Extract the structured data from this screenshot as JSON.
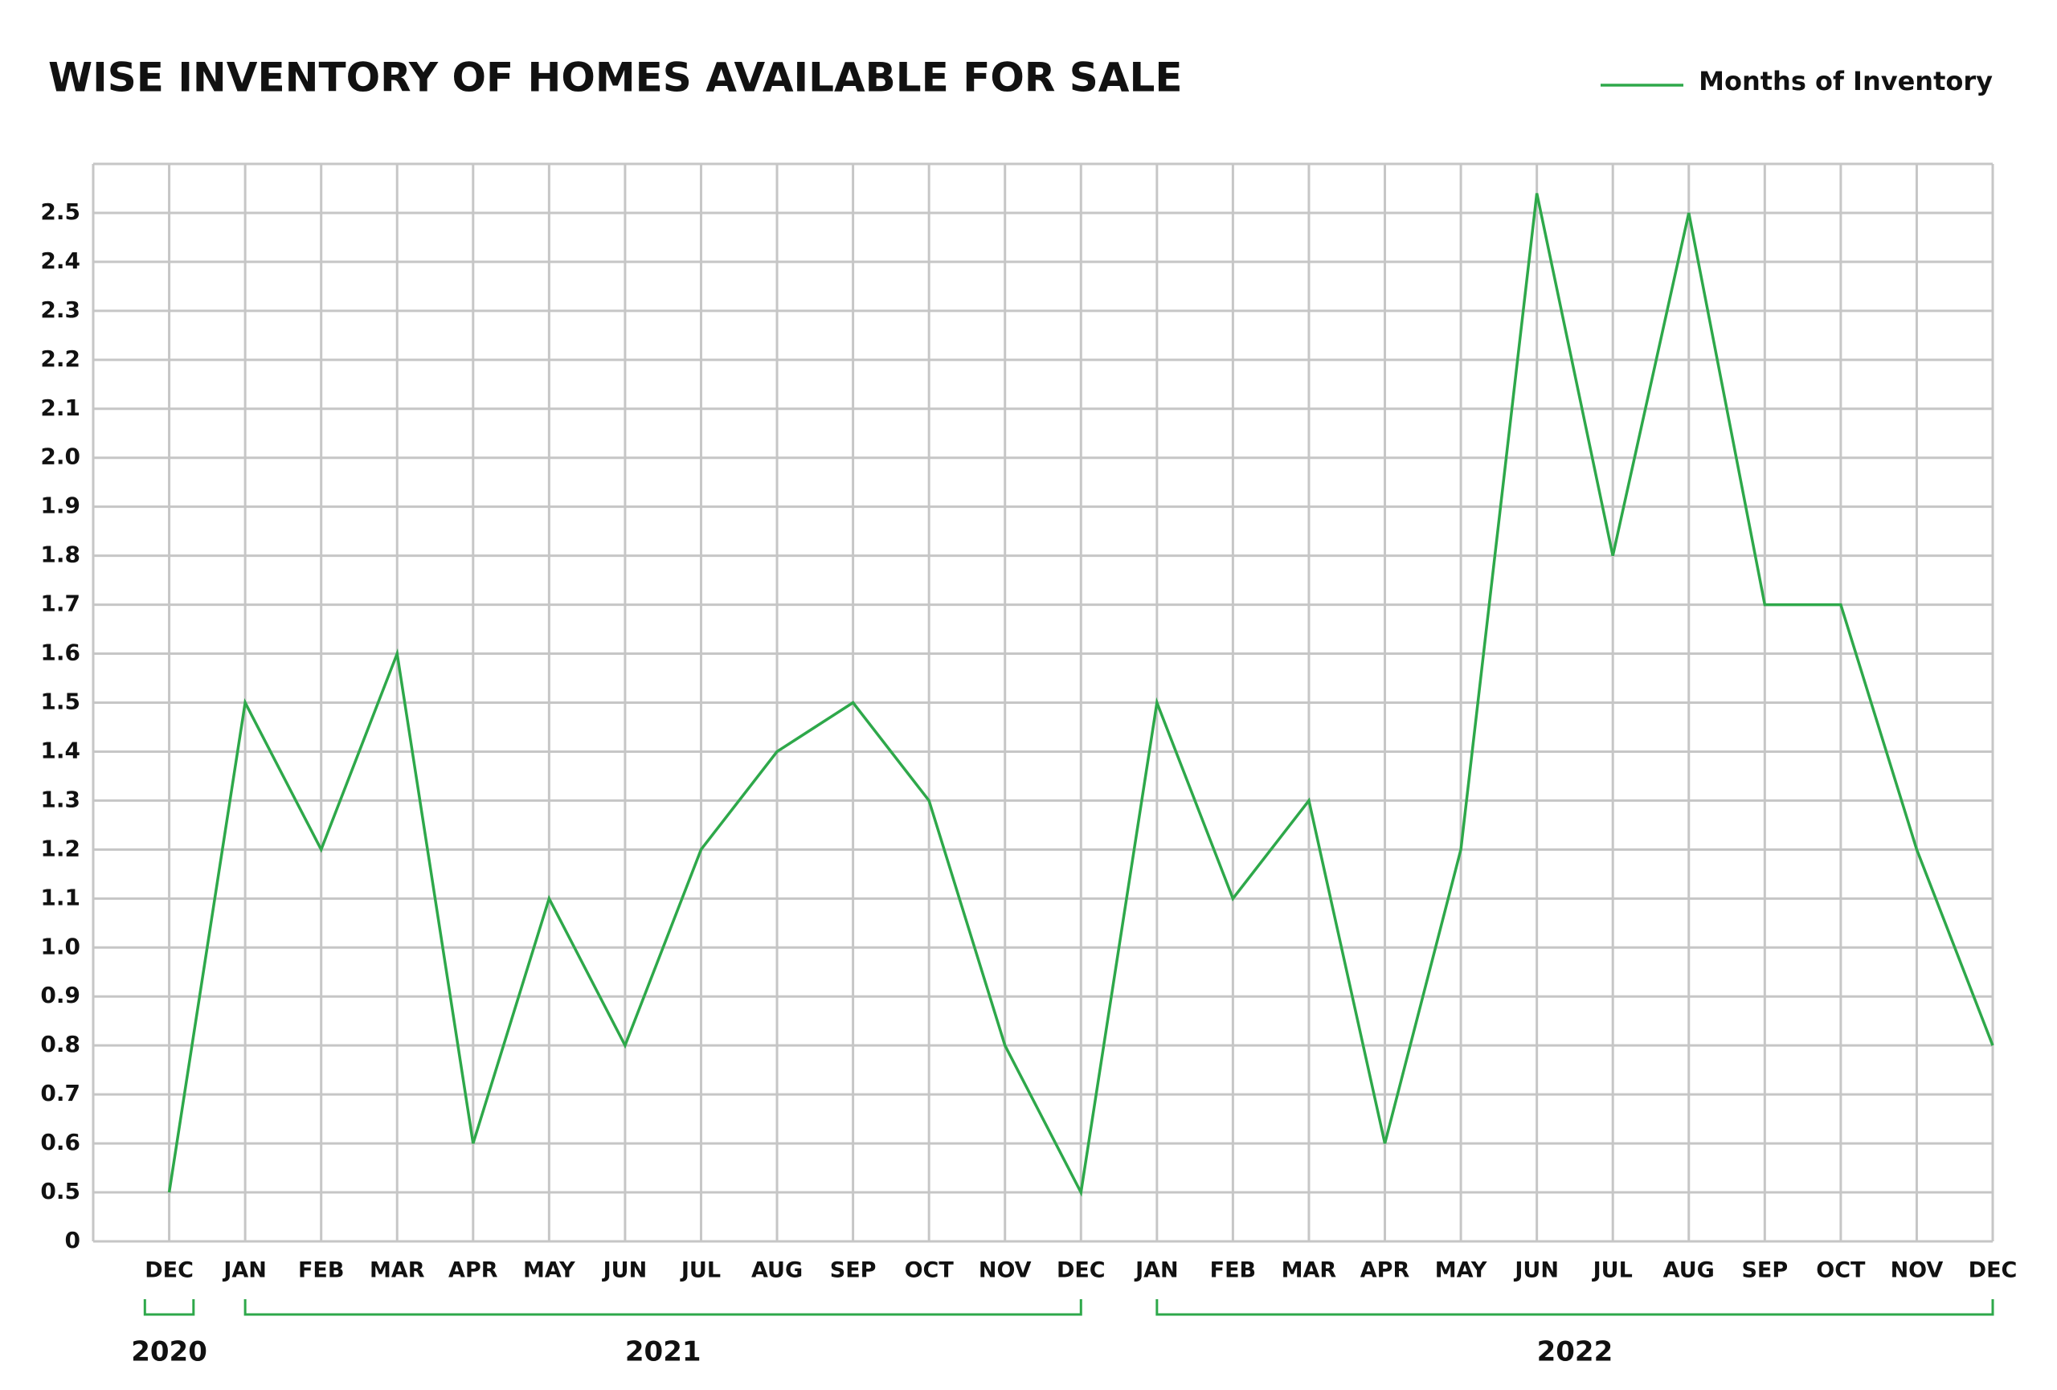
{
  "chart_data": {
    "type": "line",
    "title": "WISE INVENTORY OF HOMES AVAILABLE FOR SALE",
    "categories": [
      "DEC",
      "JAN",
      "FEB",
      "MAR",
      "APR",
      "MAY",
      "JUN",
      "JUL",
      "AUG",
      "SEP",
      "OCT",
      "NOV",
      "DEC",
      "JAN",
      "FEB",
      "MAR",
      "APR",
      "MAY",
      "JUN",
      "JUL",
      "AUG",
      "SEP",
      "OCT",
      "NOV",
      "DEC"
    ],
    "groups": [
      {
        "label": "2020",
        "start": 0,
        "end": 0
      },
      {
        "label": "2021",
        "start": 1,
        "end": 12
      },
      {
        "label": "2022",
        "start": 13,
        "end": 24
      }
    ],
    "series": [
      {
        "name": "Months of Inventory",
        "color": "#2ea84a",
        "values": [
          0.5,
          1.5,
          1.2,
          1.6,
          0.6,
          1.1,
          0.8,
          1.2,
          1.4,
          1.5,
          1.3,
          0.8,
          0.5,
          1.5,
          1.1,
          1.3,
          0.6,
          1.2,
          2.54,
          1.8,
          2.5,
          1.7,
          1.7,
          1.2,
          0.8
        ]
      }
    ],
    "ylim": [
      0,
      2.6
    ],
    "yticks": [
      0,
      0.5,
      0.6,
      0.7,
      0.8,
      0.9,
      {
        "value": 1,
        "label": "1.0"
      },
      1.1,
      1.2,
      1.3,
      1.4,
      1.5,
      1.6,
      1.7,
      1.8,
      1.9,
      {
        "value": 2,
        "label": "2.0"
      },
      2.1,
      2.2,
      2.3,
      2.4,
      2.5
    ],
    "axis_break": [
      0,
      0.5
    ],
    "grid": true,
    "legend": "top-right"
  }
}
